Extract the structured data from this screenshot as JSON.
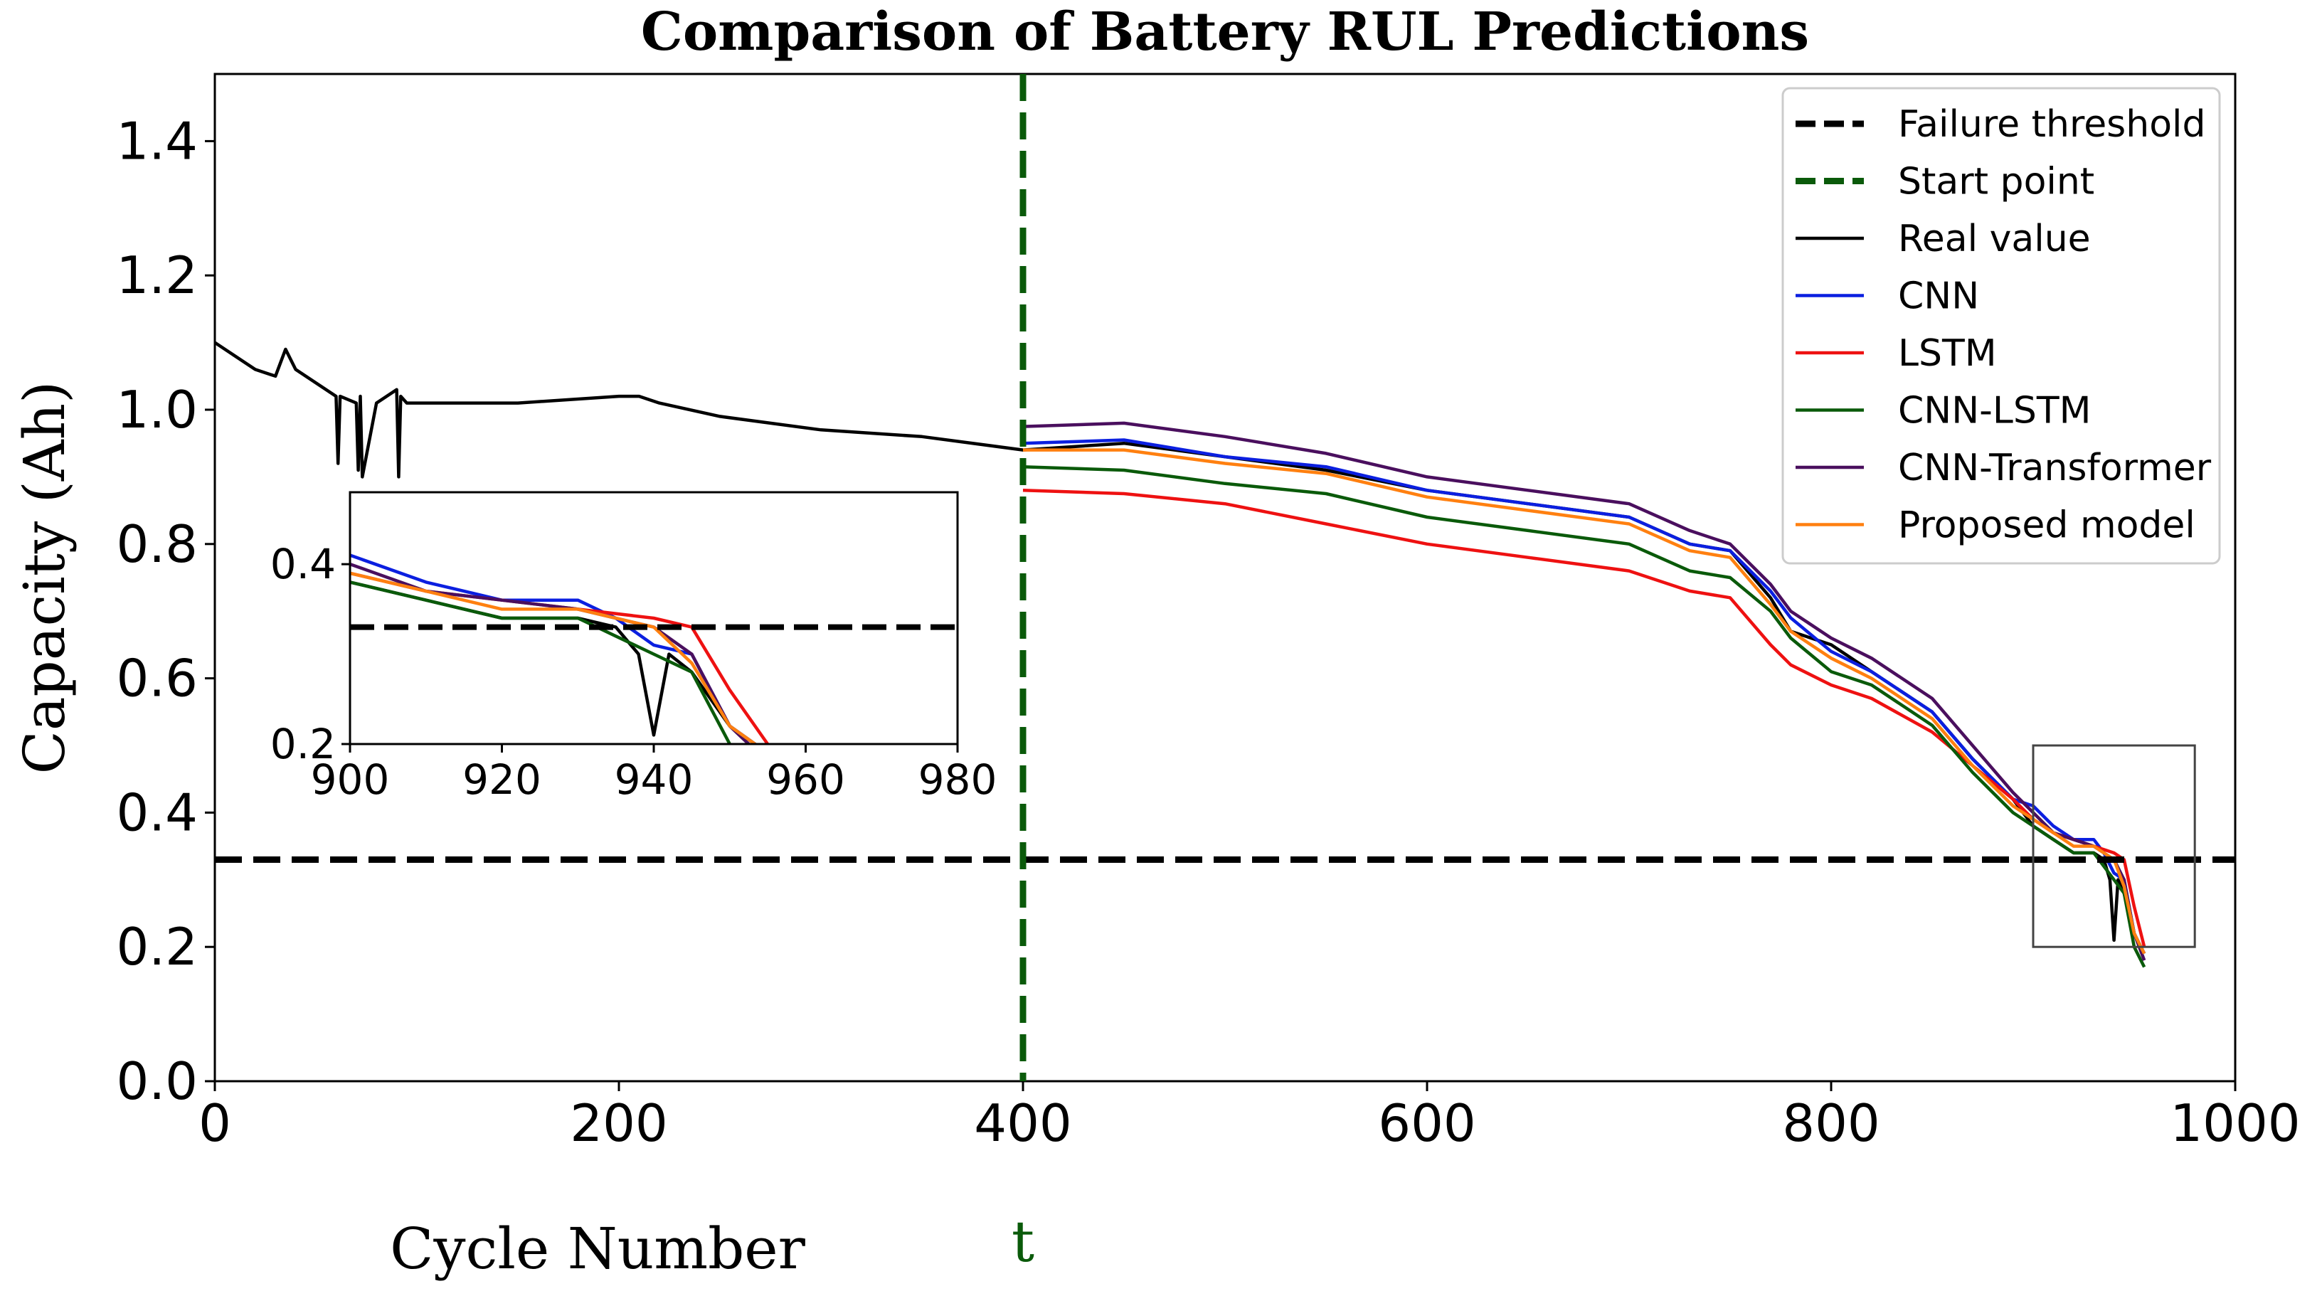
{
  "chart_data": {
    "type": "line",
    "title": "Comparison of Battery RUL Predictions",
    "xlabel": "Cycle Number",
    "ylabel": "Capacity (Ah)",
    "start_marker_label": "t",
    "xlim": [
      0,
      1000
    ],
    "ylim": [
      0,
      1.5
    ],
    "xticks": [
      0,
      200,
      400,
      600,
      800,
      1000
    ],
    "yticks": [
      0.0,
      0.2,
      0.4,
      0.6,
      0.8,
      1.0,
      1.2,
      1.4
    ],
    "failure_threshold": 0.33,
    "start_point": 400,
    "legend": {
      "placement": "top-right",
      "entries": [
        {
          "label": "Failure threshold",
          "color": "#000000",
          "style": "dashed"
        },
        {
          "label": "Start point",
          "color": "#0a5a0a",
          "style": "dashed"
        },
        {
          "label": "Real value",
          "color": "#000000",
          "style": "solid"
        },
        {
          "label": "CNN",
          "color": "#0b1fe0",
          "style": "solid"
        },
        {
          "label": "LSTM",
          "color": "#ee1111",
          "style": "solid"
        },
        {
          "label": "CNN-LSTM",
          "color": "#0a5a0a",
          "style": "solid"
        },
        {
          "label": "CNN-Transformer",
          "color": "#4a0f5e",
          "style": "solid"
        },
        {
          "label": "Proposed model",
          "color": "#ff8010",
          "style": "solid"
        }
      ]
    },
    "series": [
      {
        "name": "Real value",
        "color": "#000000",
        "x": [
          0,
          10,
          20,
          30,
          35,
          40,
          50,
          60,
          61,
          62,
          70,
          71,
          72,
          73,
          80,
          90,
          91,
          92,
          95,
          100,
          120,
          150,
          200,
          210,
          220,
          250,
          300,
          350,
          400,
          450,
          500,
          550,
          600,
          650,
          700,
          730,
          750,
          770,
          780,
          800,
          820,
          850,
          870,
          890,
          900,
          910,
          920,
          930,
          935,
          938,
          940,
          942,
          945,
          950,
          955
        ],
        "values": [
          1.1,
          1.08,
          1.06,
          1.05,
          1.09,
          1.06,
          1.04,
          1.02,
          0.92,
          1.02,
          1.01,
          0.91,
          1.02,
          0.9,
          1.01,
          1.03,
          0.9,
          1.02,
          1.01,
          1.01,
          1.01,
          1.01,
          1.02,
          1.02,
          1.01,
          0.99,
          0.97,
          0.96,
          0.94,
          0.95,
          0.93,
          0.91,
          0.88,
          0.86,
          0.84,
          0.8,
          0.79,
          0.72,
          0.67,
          0.65,
          0.61,
          0.55,
          0.48,
          0.42,
          0.38,
          0.36,
          0.34,
          0.34,
          0.33,
          0.3,
          0.21,
          0.3,
          0.28,
          0.22,
          0.19
        ]
      },
      {
        "name": "CNN",
        "color": "#0b1fe0",
        "x": [
          400,
          450,
          500,
          550,
          600,
          650,
          700,
          730,
          750,
          770,
          780,
          800,
          820,
          850,
          870,
          890,
          900,
          910,
          920,
          930,
          935,
          940,
          945,
          950,
          955
        ],
        "values": [
          0.95,
          0.955,
          0.93,
          0.915,
          0.88,
          0.86,
          0.84,
          0.8,
          0.79,
          0.73,
          0.69,
          0.64,
          0.61,
          0.55,
          0.48,
          0.42,
          0.41,
          0.38,
          0.36,
          0.36,
          0.34,
          0.31,
          0.3,
          0.22,
          0.19
        ]
      },
      {
        "name": "LSTM",
        "color": "#ee1111",
        "x": [
          400,
          450,
          500,
          550,
          600,
          650,
          700,
          730,
          750,
          770,
          780,
          800,
          820,
          850,
          870,
          890,
          900,
          910,
          920,
          930,
          940,
          945,
          950,
          955
        ],
        "values": [
          0.88,
          0.875,
          0.86,
          0.83,
          0.8,
          0.78,
          0.76,
          0.73,
          0.72,
          0.65,
          0.62,
          0.59,
          0.57,
          0.52,
          0.47,
          0.42,
          0.39,
          0.37,
          0.36,
          0.35,
          0.34,
          0.33,
          0.26,
          0.2
        ]
      },
      {
        "name": "CNN-LSTM",
        "color": "#0a5a0a",
        "x": [
          400,
          450,
          500,
          550,
          600,
          650,
          700,
          730,
          750,
          770,
          780,
          800,
          820,
          850,
          870,
          890,
          900,
          910,
          920,
          930,
          935,
          940,
          945,
          950,
          955
        ],
        "values": [
          0.915,
          0.91,
          0.89,
          0.875,
          0.84,
          0.82,
          0.8,
          0.76,
          0.75,
          0.7,
          0.66,
          0.61,
          0.59,
          0.53,
          0.46,
          0.4,
          0.38,
          0.36,
          0.34,
          0.34,
          0.32,
          0.3,
          0.28,
          0.2,
          0.17
        ]
      },
      {
        "name": "CNN-Transformer",
        "color": "#4a0f5e",
        "x": [
          400,
          450,
          500,
          550,
          600,
          650,
          700,
          730,
          750,
          770,
          780,
          800,
          820,
          850,
          870,
          890,
          900,
          910,
          920,
          930,
          940,
          945,
          950,
          955
        ],
        "values": [
          0.975,
          0.98,
          0.96,
          0.935,
          0.9,
          0.88,
          0.86,
          0.82,
          0.8,
          0.74,
          0.7,
          0.66,
          0.63,
          0.57,
          0.5,
          0.43,
          0.4,
          0.37,
          0.36,
          0.35,
          0.33,
          0.3,
          0.22,
          0.18
        ]
      },
      {
        "name": "Proposed model",
        "color": "#ff8010",
        "x": [
          400,
          450,
          500,
          550,
          600,
          650,
          700,
          730,
          750,
          770,
          780,
          800,
          820,
          850,
          870,
          890,
          900,
          910,
          920,
          930,
          940,
          945,
          950,
          955
        ],
        "values": [
          0.94,
          0.94,
          0.92,
          0.905,
          0.87,
          0.85,
          0.83,
          0.79,
          0.78,
          0.71,
          0.67,
          0.63,
          0.6,
          0.54,
          0.47,
          0.41,
          0.39,
          0.37,
          0.35,
          0.35,
          0.33,
          0.29,
          0.22,
          0.19
        ]
      }
    ],
    "inset": {
      "xlim": [
        900,
        980
      ],
      "ylim": [
        0.2,
        0.48
      ],
      "xticks": [
        900,
        920,
        940,
        960,
        980
      ],
      "yticks": [
        0.2,
        0.4
      ],
      "box_region_x": [
        900,
        980
      ],
      "box_region_y": [
        0.2,
        0.5
      ]
    }
  }
}
